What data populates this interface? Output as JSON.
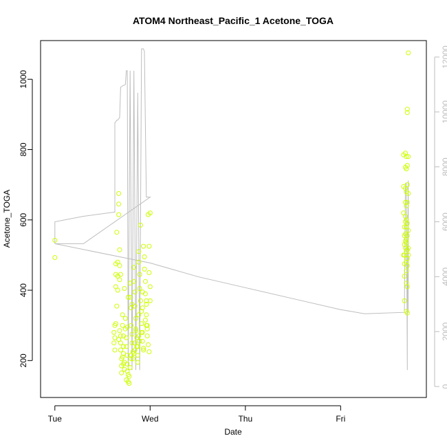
{
  "chart_data": {
    "type": "scatter",
    "title": "ATOM4 Northeast_Pacific_1 Acetone_TOGA",
    "xlabel": "Date",
    "ylabel": "Acetone_TOGA",
    "x_unit": "days after Tue 00:00",
    "xlim": [
      -0.15,
      3.9
    ],
    "ylim": [
      95,
      1110
    ],
    "y2lim": [
      -400,
      12600
    ],
    "x_ticks": [
      {
        "value": 0,
        "label": "Tue"
      },
      {
        "value": 1,
        "label": "Wed"
      },
      {
        "value": 2,
        "label": "Thu"
      },
      {
        "value": 3,
        "label": "Fri"
      }
    ],
    "y_ticks": [
      {
        "value": 200,
        "label": "200"
      },
      {
        "value": 400,
        "label": "400"
      },
      {
        "value": 600,
        "label": "600"
      },
      {
        "value": 800,
        "label": "800"
      },
      {
        "value": 1000,
        "label": "1000"
      }
    ],
    "y2_ticks": [
      {
        "value": 0,
        "label": "0"
      },
      {
        "value": 2000,
        "label": "2000"
      },
      {
        "value": 4000,
        "label": "4000"
      },
      {
        "value": 6000,
        "label": "6000"
      },
      {
        "value": 8000,
        "label": "8000"
      },
      {
        "value": 10000,
        "label": "10000"
      },
      {
        "value": 12000,
        "label": "12000"
      }
    ],
    "grid": false,
    "colors": {
      "points": "#ccff00",
      "altitude_line": "#bdbdbd",
      "axis": "#000000"
    },
    "series": [
      {
        "kind": "scatter",
        "axis": "left",
        "color": "#ccff00",
        "points": [
          [
            0.0,
            542
          ],
          [
            0.0,
            493
          ],
          [
            0.62,
            250
          ],
          [
            0.62,
            280
          ],
          [
            0.63,
            230
          ],
          [
            0.63,
            300
          ],
          [
            0.63,
            265
          ],
          [
            0.64,
            445
          ],
          [
            0.64,
            475
          ],
          [
            0.64,
            410
          ],
          [
            0.65,
            355
          ],
          [
            0.65,
            565
          ],
          [
            0.66,
            480
          ],
          [
            0.66,
            440
          ],
          [
            0.66,
            400
          ],
          [
            0.67,
            675
          ],
          [
            0.67,
            645
          ],
          [
            0.67,
            615
          ],
          [
            0.68,
            515
          ],
          [
            0.68,
            470
          ],
          [
            0.68,
            430
          ],
          [
            0.69,
            270
          ],
          [
            0.69,
            250
          ],
          [
            0.69,
            230
          ],
          [
            0.7,
            205
          ],
          [
            0.7,
            185
          ],
          [
            0.7,
            165
          ],
          [
            0.71,
            330
          ],
          [
            0.71,
            300
          ],
          [
            0.72,
            270
          ],
          [
            0.72,
            240
          ],
          [
            0.72,
            220
          ],
          [
            0.73,
            195
          ],
          [
            0.73,
            175
          ],
          [
            0.74,
            320
          ],
          [
            0.74,
            290
          ],
          [
            0.75,
            265
          ],
          [
            0.75,
            240
          ],
          [
            0.76,
            215
          ],
          [
            0.76,
            190
          ],
          [
            0.77,
            160
          ],
          [
            0.77,
            140
          ],
          [
            0.78,
            155
          ],
          [
            0.78,
            135
          ],
          [
            0.79,
            420
          ],
          [
            0.79,
            380
          ],
          [
            0.8,
            350
          ],
          [
            0.8,
            300
          ],
          [
            0.81,
            275
          ],
          [
            0.81,
            250
          ],
          [
            0.82,
            225
          ],
          [
            0.82,
            205
          ],
          [
            0.83,
            465
          ],
          [
            0.83,
            425
          ],
          [
            0.84,
            395
          ],
          [
            0.84,
            355
          ],
          [
            0.85,
            320
          ],
          [
            0.85,
            290
          ],
          [
            0.86,
            265
          ],
          [
            0.86,
            240
          ],
          [
            0.87,
            215
          ],
          [
            0.87,
            195
          ],
          [
            0.88,
            510
          ],
          [
            0.88,
            480
          ],
          [
            0.89,
            445
          ],
          [
            0.89,
            405
          ],
          [
            0.9,
            585
          ],
          [
            0.9,
            370
          ],
          [
            0.91,
            340
          ],
          [
            0.91,
            305
          ],
          [
            0.92,
            280
          ],
          [
            0.92,
            255
          ],
          [
            0.93,
            230
          ],
          [
            0.93,
            525
          ],
          [
            0.94,
            495
          ],
          [
            0.94,
            460
          ],
          [
            0.95,
            425
          ],
          [
            0.95,
            390
          ],
          [
            0.96,
            360
          ],
          [
            0.96,
            330
          ],
          [
            0.97,
            300
          ],
          [
            0.97,
            270
          ],
          [
            0.98,
            245
          ],
          [
            0.98,
            615
          ],
          [
            0.99,
            525
          ],
          [
            0.99,
            450
          ],
          [
            1.0,
            410
          ],
          [
            1.0,
            370
          ],
          [
            0.69,
            445
          ],
          [
            0.73,
            405
          ],
          [
            0.77,
            380
          ],
          [
            0.81,
            360
          ],
          [
            0.85,
            285
          ],
          [
            0.89,
            255
          ],
          [
            0.93,
            235
          ],
          [
            0.97,
            290
          ],
          [
            0.76,
            295
          ],
          [
            0.8,
            215
          ],
          [
            0.84,
            230
          ],
          [
            0.88,
            270
          ],
          [
            0.92,
            350
          ],
          [
            0.96,
            300
          ],
          [
            0.67,
            260
          ],
          [
            0.71,
            210
          ],
          [
            0.75,
            145
          ],
          [
            0.79,
            180
          ],
          [
            0.83,
            220
          ],
          [
            0.87,
            240
          ],
          [
            0.91,
            280
          ],
          [
            0.95,
            315
          ],
          [
            0.99,
            225
          ],
          [
            0.64,
            305
          ],
          [
            0.68,
            285
          ],
          [
            0.72,
            190
          ],
          [
            0.76,
            170
          ],
          [
            0.8,
            205
          ],
          [
            0.84,
            250
          ],
          [
            0.88,
            330
          ],
          [
            0.92,
            395
          ],
          [
            0.96,
            370
          ],
          [
            1.0,
            620
          ],
          [
            3.66,
            785
          ],
          [
            3.66,
            695
          ],
          [
            3.66,
            620
          ],
          [
            3.67,
            555
          ],
          [
            3.67,
            530
          ],
          [
            3.67,
            500
          ],
          [
            3.67,
            475
          ],
          [
            3.67,
            440
          ],
          [
            3.67,
            370
          ],
          [
            3.68,
            790
          ],
          [
            3.68,
            750
          ],
          [
            3.68,
            690
          ],
          [
            3.68,
            650
          ],
          [
            3.68,
            595
          ],
          [
            3.68,
            560
          ],
          [
            3.68,
            520
          ],
          [
            3.69,
            780
          ],
          [
            3.69,
            745
          ],
          [
            3.69,
            680
          ],
          [
            3.69,
            640
          ],
          [
            3.69,
            600
          ],
          [
            3.69,
            545
          ],
          [
            3.69,
            510
          ],
          [
            3.69,
            480
          ],
          [
            3.69,
            455
          ],
          [
            3.69,
            420
          ],
          [
            3.69,
            340
          ],
          [
            3.7,
            915
          ],
          [
            3.7,
            905
          ],
          [
            3.7,
            755
          ],
          [
            3.7,
            700
          ],
          [
            3.7,
            650
          ],
          [
            3.7,
            590
          ],
          [
            3.7,
            555
          ],
          [
            3.7,
            515
          ],
          [
            3.7,
            490
          ],
          [
            3.7,
            410
          ],
          [
            3.7,
            335
          ],
          [
            3.71,
            1075
          ],
          [
            3.71,
            780
          ],
          [
            3.71,
            675
          ],
          [
            3.71,
            570
          ],
          [
            3.71,
            500
          ],
          [
            3.67,
            580
          ],
          [
            3.68,
            610
          ],
          [
            3.69,
            580
          ],
          [
            3.7,
            470
          ],
          [
            3.66,
            500
          ],
          [
            3.71,
            520
          ],
          [
            3.68,
            540
          ],
          [
            3.69,
            535
          ]
        ]
      },
      {
        "kind": "line",
        "axis": "right",
        "color": "#bdbdbd",
        "points": [
          [
            0.0,
            5200
          ],
          [
            0.0,
            6000
          ],
          [
            0.3,
            6200
          ],
          [
            0.62,
            6350
          ],
          [
            0.63,
            6350
          ],
          [
            0.63,
            9600
          ],
          [
            0.65,
            9700
          ],
          [
            0.66,
            9700
          ],
          [
            0.68,
            9800
          ],
          [
            0.69,
            10900
          ],
          [
            0.71,
            10950
          ],
          [
            0.74,
            11000
          ],
          [
            0.75,
            11500
          ],
          [
            0.76,
            11500
          ],
          [
            0.77,
            600
          ],
          [
            0.79,
            11500
          ],
          [
            0.81,
            600
          ],
          [
            0.83,
            11500
          ],
          [
            0.85,
            600
          ],
          [
            0.87,
            10700
          ],
          [
            0.89,
            600
          ],
          [
            0.91,
            12300
          ],
          [
            0.93,
            12300
          ],
          [
            0.94,
            12200
          ],
          [
            0.96,
            6900
          ],
          [
            1.0,
            6900
          ],
          [
            0.3,
            5200
          ],
          [
            0.0,
            5200
          ],
          [
            1.0,
            4500
          ],
          [
            1.5,
            4000
          ],
          [
            2.0,
            3600
          ],
          [
            2.5,
            3200
          ],
          [
            3.0,
            2800
          ],
          [
            3.25,
            2650
          ],
          [
            3.67,
            2700
          ],
          [
            3.68,
            7400
          ],
          [
            3.69,
            7400
          ],
          [
            3.7,
            600
          ],
          [
            3.7,
            2700
          ],
          [
            3.71,
            7500
          ],
          [
            3.71,
            2700
          ]
        ]
      }
    ]
  }
}
